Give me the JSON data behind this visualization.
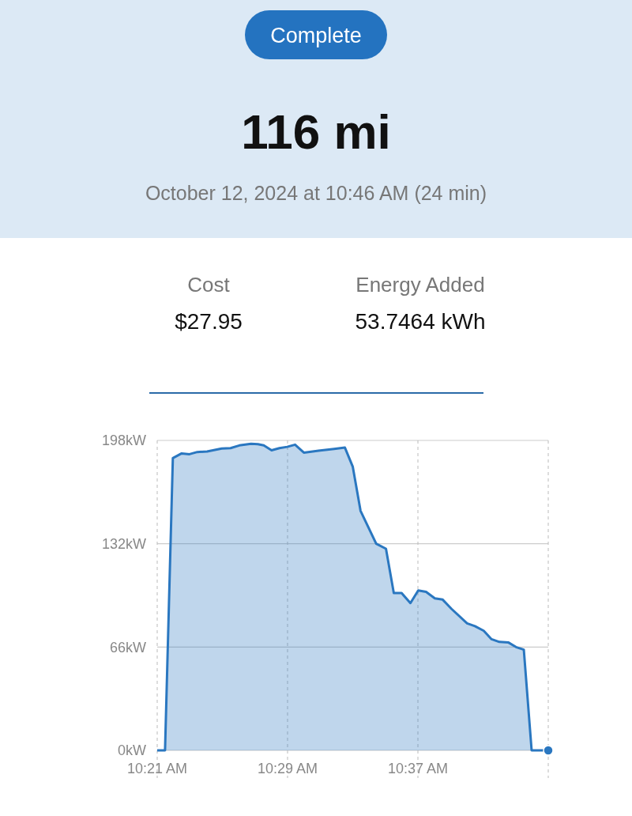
{
  "chart_data": {
    "type": "area",
    "title": "116 mi",
    "subtitle": "October 12, 2024 at 10:46 AM (24 min)",
    "annotations": [
      "Complete",
      "Cost",
      "$27.95",
      "Energy Added",
      "53.7464 kWh"
    ],
    "xlim": [
      10.35,
      10.75
    ],
    "xticks": [
      {
        "value": 10.35,
        "label": "10:21 AM"
      },
      {
        "value": 10.48333,
        "label": "10:29 AM"
      },
      {
        "value": 10.61667,
        "label": "10:37 AM"
      },
      {
        "value": 10.75,
        "label": null
      }
    ],
    "ylim": [
      0,
      198
    ],
    "yticks": [
      {
        "value": 0,
        "label": "0kW"
      },
      {
        "value": 66,
        "label": "66kW"
      },
      {
        "value": 132,
        "label": "132kW"
      },
      {
        "value": 198,
        "label": "198kW"
      }
    ],
    "grid": true,
    "marker": "none",
    "line_style": "solid",
    "series": [
      {
        "color": "#2a77c0",
        "x": [
          10.35,
          10.358,
          10.366,
          10.375,
          10.383,
          10.391,
          10.401,
          10.416,
          10.425,
          10.434,
          10.446,
          10.453,
          10.459,
          10.467,
          10.475,
          10.483,
          10.491,
          10.5,
          10.515,
          10.531,
          10.542,
          10.55,
          10.558,
          10.574,
          10.584,
          10.592,
          10.6,
          10.609,
          10.617,
          10.625,
          10.634,
          10.642,
          10.651,
          10.667,
          10.675,
          10.684,
          10.692,
          10.7,
          10.709,
          10.717,
          10.725,
          10.733,
          10.75
        ],
        "values": [
          0,
          0,
          186.7,
          189.7,
          189.2,
          190.6,
          190.9,
          192.8,
          193.1,
          194.8,
          195.8,
          195.6,
          194.8,
          191.7,
          193.1,
          193.9,
          195.3,
          190.2,
          191.4,
          192.6,
          193.4,
          181.3,
          153,
          132,
          128.8,
          100.5,
          100.5,
          94.1,
          102.2,
          101.3,
          97.1,
          96.3,
          90.4,
          81.1,
          79.4,
          76.4,
          71,
          69.3,
          69,
          66,
          64.3,
          0,
          0
        ]
      },
      {
        "type": "scatter",
        "marker": "circle",
        "color": "#2a77c0",
        "x": [
          10.75
        ],
        "values": [
          0
        ]
      }
    ]
  }
}
